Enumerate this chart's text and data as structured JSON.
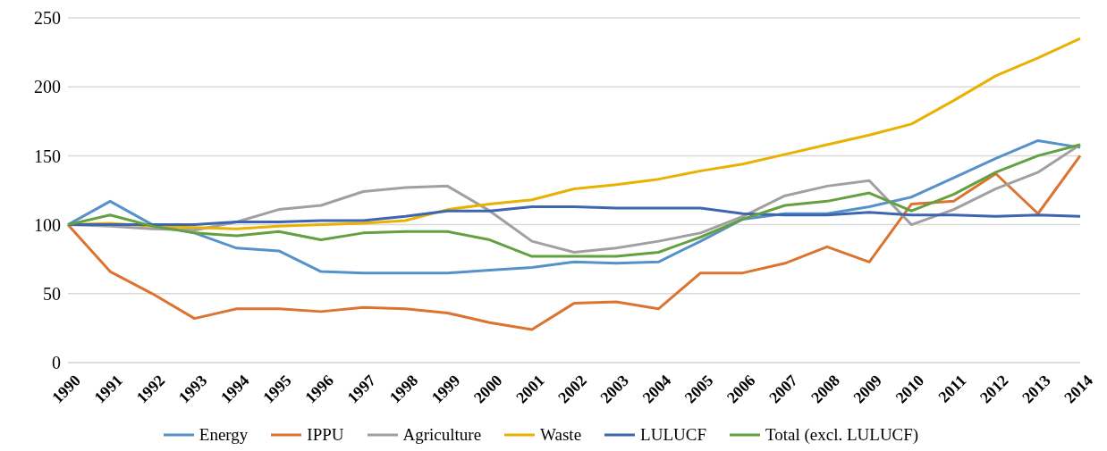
{
  "chart_data": {
    "type": "line",
    "categories": [
      "1990",
      "1991",
      "1992",
      "1993",
      "1994",
      "1995",
      "1996",
      "1997",
      "1998",
      "1999",
      "2000",
      "2001",
      "2002",
      "2003",
      "2004",
      "2005",
      "2006",
      "2007",
      "2008",
      "2009",
      "2010",
      "2011",
      "2012",
      "2013",
      "2014"
    ],
    "series": [
      {
        "name": "Energy",
        "color": "#5592c9",
        "values": [
          100,
          117,
          100,
          94,
          83,
          81,
          66,
          65,
          65,
          65,
          67,
          69,
          73,
          72,
          73,
          88,
          104,
          108,
          108,
          113,
          120,
          134,
          148,
          161,
          156
        ]
      },
      {
        "name": "IPPU",
        "color": "#db7430",
        "values": [
          100,
          66,
          50,
          32,
          39,
          39,
          37,
          40,
          39,
          36,
          29,
          24,
          43,
          44,
          39,
          65,
          65,
          72,
          84,
          73,
          115,
          117,
          137,
          108,
          150
        ]
      },
      {
        "name": "Agriculture",
        "color": "#a0a0a0",
        "values": [
          100,
          99,
          97,
          96,
          102,
          111,
          114,
          124,
          127,
          128,
          110,
          88,
          80,
          83,
          88,
          94,
          106,
          121,
          128,
          132,
          100,
          111,
          126,
          138,
          158
        ]
      },
      {
        "name": "Waste",
        "color": "#e9b100",
        "values": [
          100,
          101,
          99,
          98,
          97,
          99,
          100,
          101,
          103,
          111,
          115,
          118,
          126,
          129,
          133,
          139,
          144,
          151,
          158,
          165,
          173,
          190,
          208,
          221,
          235
        ]
      },
      {
        "name": "LULUCF",
        "color": "#3d65b0",
        "values": [
          100,
          100,
          100,
          100,
          102,
          102,
          103,
          103,
          106,
          110,
          110,
          113,
          113,
          112,
          112,
          112,
          108,
          107,
          107,
          109,
          107,
          107,
          106,
          107,
          106
        ]
      },
      {
        "name": "Total (excl. LULUCF)",
        "color": "#64a040",
        "values": [
          100,
          107,
          99,
          94,
          92,
          95,
          89,
          94,
          95,
          95,
          89,
          77,
          77,
          77,
          80,
          91,
          104,
          114,
          117,
          123,
          110,
          122,
          138,
          150,
          158
        ]
      }
    ],
    "ylim": [
      0,
      250
    ],
    "yticks": [
      0,
      50,
      100,
      150,
      200,
      250
    ],
    "grid": "y",
    "legend": "bottom",
    "marker": "none",
    "line_style": "solid"
  }
}
